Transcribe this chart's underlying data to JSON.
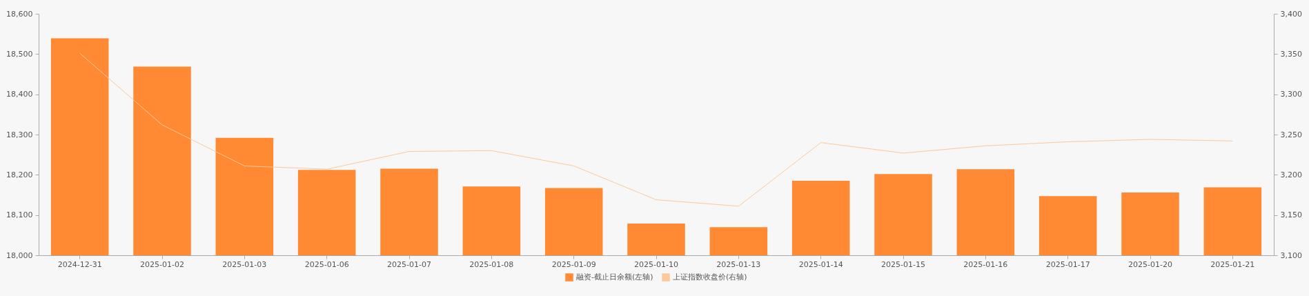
{
  "chart_data": {
    "type": "bar",
    "categories": [
      "2024-12-31",
      "2025-01-02",
      "2025-01-03",
      "2025-01-06",
      "2025-01-07",
      "2025-01-08",
      "2025-01-09",
      "2025-01-10",
      "2025-01-13",
      "2025-01-14",
      "2025-01-15",
      "2025-01-16",
      "2025-01-17",
      "2025-01-20",
      "2025-01-21"
    ],
    "series": [
      {
        "name": "融资-截止日余额(左轴)",
        "color": "#ff8a33",
        "values": [
          18539,
          18469,
          18292,
          18212,
          18215,
          18171,
          18167,
          18079,
          18070,
          18185,
          18202,
          18214,
          18147,
          18156,
          18169
        ]
      },
      {
        "name": "上证指数收盘价(右轴)",
        "type": "line",
        "axis": "y2",
        "color": "#fcc99a",
        "values": [
          3351,
          3262,
          3211,
          3207,
          3229,
          3230,
          3211,
          3169,
          3161,
          3240,
          3227,
          3236,
          3241,
          3244,
          3242
        ]
      }
    ],
    "ylim": [
      18000,
      18600
    ],
    "yticks": [
      {
        "value": 18000,
        "label": "18,000"
      },
      {
        "value": 18100,
        "label": "18,100"
      },
      {
        "value": 18200,
        "label": "18,200"
      },
      {
        "value": 18300,
        "label": "18,300"
      },
      {
        "value": 18400,
        "label": "18,400"
      },
      {
        "value": 18500,
        "label": "18,500"
      },
      {
        "value": 18600,
        "label": "18,600"
      }
    ],
    "y2lim": [
      3100,
      3400
    ],
    "y2ticks": [
      {
        "value": 3100,
        "label": "3,100"
      },
      {
        "value": 3150,
        "label": "3,150"
      },
      {
        "value": 3200,
        "label": "3,200"
      },
      {
        "value": 3250,
        "label": "3,250"
      },
      {
        "value": 3300,
        "label": "3,300"
      },
      {
        "value": 3350,
        "label": "3,350"
      },
      {
        "value": 3400,
        "label": "3,400"
      }
    ],
    "grid": false,
    "legend": "bottom",
    "marker": "none",
    "line_style": "solid"
  }
}
